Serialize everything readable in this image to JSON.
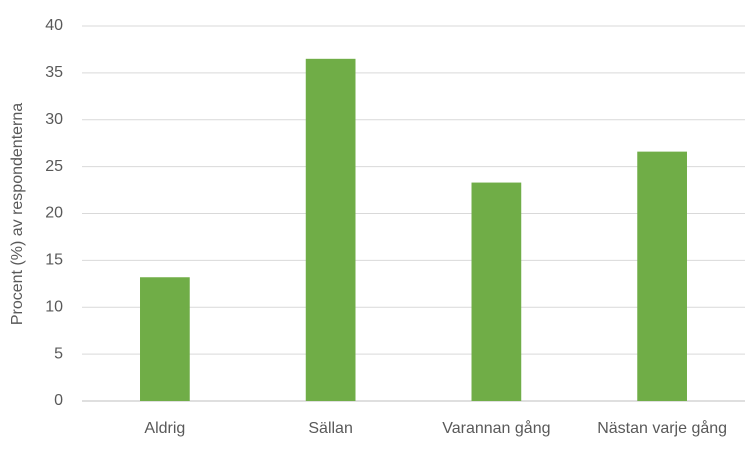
{
  "chart_data": {
    "type": "bar",
    "y_label": "Procent (%) av respondenterna",
    "categories": [
      "Aldrig",
      "Sällan",
      "Varannan gång",
      "Nästan varje gång"
    ],
    "values": [
      13.2,
      36.5,
      23.3,
      26.6
    ],
    "color": "#70ad47",
    "ylim": [
      0,
      40
    ],
    "yticks": [
      0,
      5,
      10,
      15,
      20,
      25,
      30,
      35,
      40
    ],
    "grid": true
  }
}
